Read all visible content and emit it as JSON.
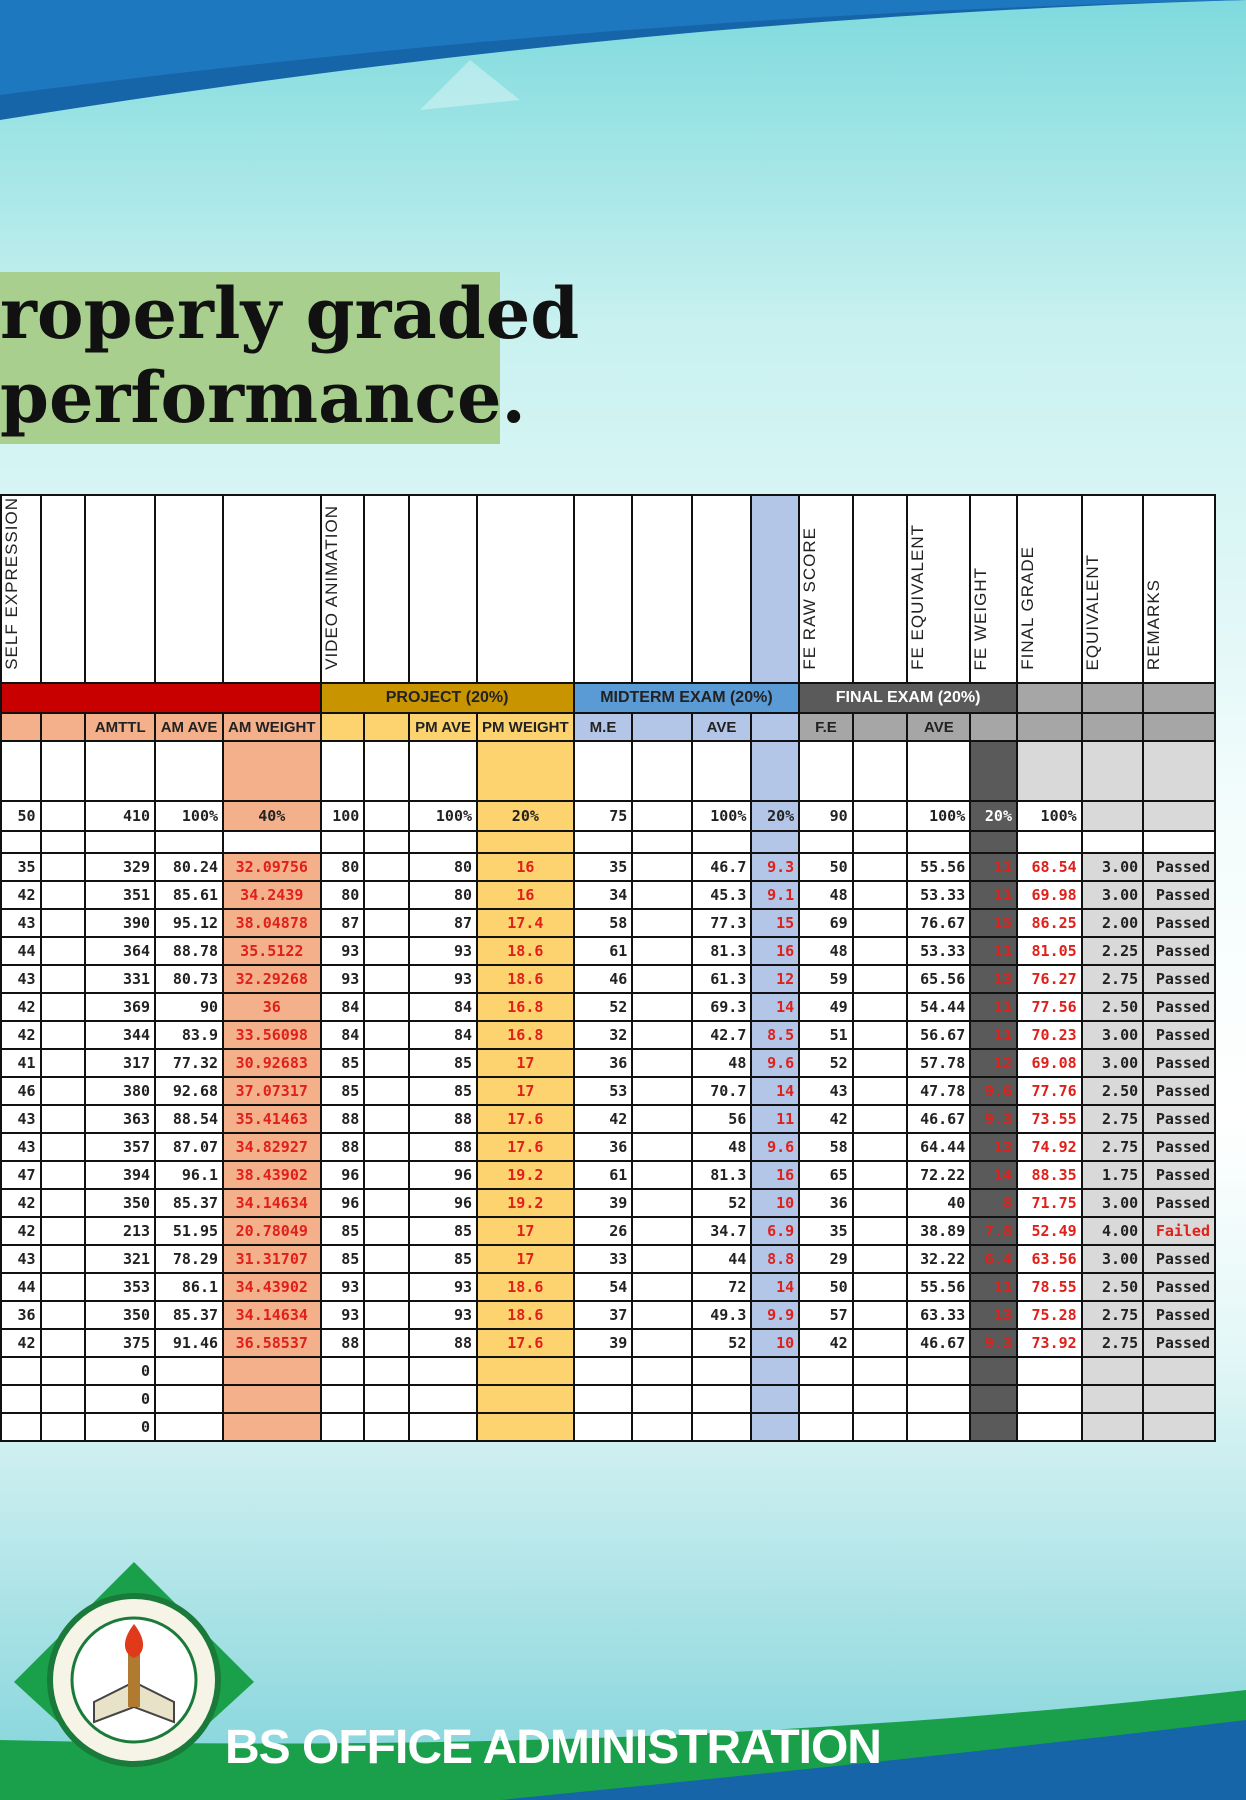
{
  "slide": {
    "banner_line1": "roperly graded",
    "banner_line2": "performance.",
    "footer_text": "BS OFFICE ADMINISTRATION",
    "colors": {
      "banner": "#a9cf8f",
      "project": "#c89400",
      "midterm": "#5b9bd5",
      "final": "#5a5a5a",
      "failed": "#e0201a"
    }
  },
  "sheet": {
    "rotated_headers": [
      "SELF EXPRESSION",
      "",
      "",
      "",
      "",
      "VIDEO ANIMATION",
      "",
      "",
      "",
      "",
      "",
      "",
      "",
      "FE RAW SCORE",
      "",
      "FE EQUIVALENT",
      "FE WEIGHT",
      "FINAL GRADE",
      "EQUIVALENT",
      "REMARKS"
    ],
    "group_headers": {
      "project": "PROJECT (20%)",
      "midterm": "MIDTERM EXAM (20%)",
      "final": "FINAL EXAM (20%)"
    },
    "sub_headers": [
      "",
      "",
      "AMTTL",
      "AM AVE",
      "AM WEIGHT",
      "",
      "",
      "PM AVE",
      "PM WEIGHT",
      "M.E",
      "",
      "AVE",
      "",
      "F.E",
      "",
      "AVE",
      "",
      "",
      "",
      ""
    ],
    "max_row": [
      "50",
      "",
      "410",
      "100%",
      "40%",
      "100",
      "",
      "100%",
      "20%",
      "75",
      "",
      "100%",
      "20%",
      "90",
      "",
      "100%",
      "20%",
      "100%",
      "",
      ""
    ],
    "rows": [
      [
        "35",
        "",
        "329",
        "80.24",
        "32.09756",
        "80",
        "",
        "80",
        "16",
        "35",
        "",
        "46.7",
        "9.3",
        "50",
        "",
        "55.56",
        "11",
        "68.54",
        "3.00",
        "Passed"
      ],
      [
        "42",
        "",
        "351",
        "85.61",
        "34.2439",
        "80",
        "",
        "80",
        "16",
        "34",
        "",
        "45.3",
        "9.1",
        "48",
        "",
        "53.33",
        "11",
        "69.98",
        "3.00",
        "Passed"
      ],
      [
        "43",
        "",
        "390",
        "95.12",
        "38.04878",
        "87",
        "",
        "87",
        "17.4",
        "58",
        "",
        "77.3",
        "15",
        "69",
        "",
        "76.67",
        "15",
        "86.25",
        "2.00",
        "Passed"
      ],
      [
        "44",
        "",
        "364",
        "88.78",
        "35.5122",
        "93",
        "",
        "93",
        "18.6",
        "61",
        "",
        "81.3",
        "16",
        "48",
        "",
        "53.33",
        "11",
        "81.05",
        "2.25",
        "Passed"
      ],
      [
        "43",
        "",
        "331",
        "80.73",
        "32.29268",
        "93",
        "",
        "93",
        "18.6",
        "46",
        "",
        "61.3",
        "12",
        "59",
        "",
        "65.56",
        "13",
        "76.27",
        "2.75",
        "Passed"
      ],
      [
        "42",
        "",
        "369",
        "90",
        "36",
        "84",
        "",
        "84",
        "16.8",
        "52",
        "",
        "69.3",
        "14",
        "49",
        "",
        "54.44",
        "11",
        "77.56",
        "2.50",
        "Passed"
      ],
      [
        "42",
        "",
        "344",
        "83.9",
        "33.56098",
        "84",
        "",
        "84",
        "16.8",
        "32",
        "",
        "42.7",
        "8.5",
        "51",
        "",
        "56.67",
        "11",
        "70.23",
        "3.00",
        "Passed"
      ],
      [
        "41",
        "",
        "317",
        "77.32",
        "30.92683",
        "85",
        "",
        "85",
        "17",
        "36",
        "",
        "48",
        "9.6",
        "52",
        "",
        "57.78",
        "12",
        "69.08",
        "3.00",
        "Passed"
      ],
      [
        "46",
        "",
        "380",
        "92.68",
        "37.07317",
        "85",
        "",
        "85",
        "17",
        "53",
        "",
        "70.7",
        "14",
        "43",
        "",
        "47.78",
        "9.6",
        "77.76",
        "2.50",
        "Passed"
      ],
      [
        "43",
        "",
        "363",
        "88.54",
        "35.41463",
        "88",
        "",
        "88",
        "17.6",
        "42",
        "",
        "56",
        "11",
        "42",
        "",
        "46.67",
        "9.3",
        "73.55",
        "2.75",
        "Passed"
      ],
      [
        "43",
        "",
        "357",
        "87.07",
        "34.82927",
        "88",
        "",
        "88",
        "17.6",
        "36",
        "",
        "48",
        "9.6",
        "58",
        "",
        "64.44",
        "13",
        "74.92",
        "2.75",
        "Passed"
      ],
      [
        "47",
        "",
        "394",
        "96.1",
        "38.43902",
        "96",
        "",
        "96",
        "19.2",
        "61",
        "",
        "81.3",
        "16",
        "65",
        "",
        "72.22",
        "14",
        "88.35",
        "1.75",
        "Passed"
      ],
      [
        "42",
        "",
        "350",
        "85.37",
        "34.14634",
        "96",
        "",
        "96",
        "19.2",
        "39",
        "",
        "52",
        "10",
        "36",
        "",
        "40",
        "8",
        "71.75",
        "3.00",
        "Passed"
      ],
      [
        "42",
        "",
        "213",
        "51.95",
        "20.78049",
        "85",
        "",
        "85",
        "17",
        "26",
        "",
        "34.7",
        "6.9",
        "35",
        "",
        "38.89",
        "7.8",
        "52.49",
        "4.00",
        "Failed"
      ],
      [
        "43",
        "",
        "321",
        "78.29",
        "31.31707",
        "85",
        "",
        "85",
        "17",
        "33",
        "",
        "44",
        "8.8",
        "29",
        "",
        "32.22",
        "6.4",
        "63.56",
        "3.00",
        "Passed"
      ],
      [
        "44",
        "",
        "353",
        "86.1",
        "34.43902",
        "93",
        "",
        "93",
        "18.6",
        "54",
        "",
        "72",
        "14",
        "50",
        "",
        "55.56",
        "11",
        "78.55",
        "2.50",
        "Passed"
      ],
      [
        "36",
        "",
        "350",
        "85.37",
        "34.14634",
        "93",
        "",
        "93",
        "18.6",
        "37",
        "",
        "49.3",
        "9.9",
        "57",
        "",
        "63.33",
        "13",
        "75.28",
        "2.75",
        "Passed"
      ],
      [
        "42",
        "",
        "375",
        "91.46",
        "36.58537",
        "88",
        "",
        "88",
        "17.6",
        "39",
        "",
        "52",
        "10",
        "42",
        "",
        "46.67",
        "9.3",
        "73.92",
        "2.75",
        "Passed"
      ],
      [
        "",
        "",
        "0",
        "",
        "",
        "",
        "",
        "",
        "",
        "",
        "",
        "",
        "",
        "",
        "",
        "",
        "",
        "",
        "",
        ""
      ],
      [
        "",
        "",
        "0",
        "",
        "",
        "",
        "",
        "",
        "",
        "",
        "",
        "",
        "",
        "",
        "",
        "",
        "",
        "",
        "",
        ""
      ],
      [
        "",
        "",
        "0",
        "",
        "",
        "",
        "",
        "",
        "",
        "",
        "",
        "",
        "",
        "",
        "",
        "",
        "",
        "",
        "",
        ""
      ]
    ]
  }
}
